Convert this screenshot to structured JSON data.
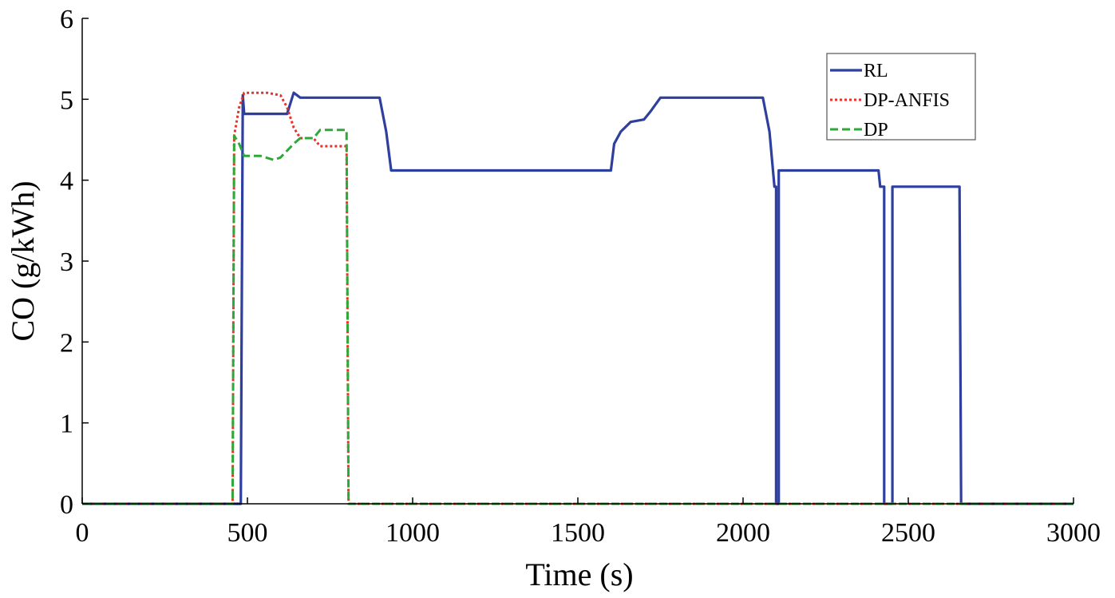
{
  "chart_data": {
    "type": "line",
    "title": "",
    "xlabel": "Time (s)",
    "ylabel": "CO (g/kWh)",
    "xlim": [
      0,
      3000
    ],
    "ylim": [
      0,
      6
    ],
    "xticks": [
      0,
      500,
      1000,
      1500,
      2000,
      2500,
      3000
    ],
    "yticks": [
      0,
      1,
      2,
      3,
      4,
      5,
      6
    ],
    "grid": false,
    "legend_position": "top-right",
    "series": [
      {
        "name": "RL",
        "color": "#2e3f9e",
        "style": "solid",
        "points": [
          [
            0,
            0
          ],
          [
            480,
            0
          ],
          [
            486,
            5.05
          ],
          [
            490,
            4.82
          ],
          [
            620,
            4.82
          ],
          [
            640,
            5.08
          ],
          [
            660,
            5.02
          ],
          [
            900,
            5.02
          ],
          [
            920,
            4.6
          ],
          [
            935,
            4.12
          ],
          [
            1600,
            4.12
          ],
          [
            1610,
            4.45
          ],
          [
            1630,
            4.6
          ],
          [
            1660,
            4.72
          ],
          [
            1700,
            4.75
          ],
          [
            1720,
            4.85
          ],
          [
            1750,
            5.02
          ],
          [
            2060,
            5.02
          ],
          [
            2080,
            4.6
          ],
          [
            2095,
            3.92
          ],
          [
            2100,
            3.92
          ],
          [
            2100,
            0
          ],
          [
            2108,
            0
          ],
          [
            2108,
            4.12
          ],
          [
            2410,
            4.12
          ],
          [
            2415,
            3.92
          ],
          [
            2427,
            3.92
          ],
          [
            2427,
            0
          ],
          [
            2452,
            0
          ],
          [
            2452,
            3.92
          ],
          [
            2655,
            3.92
          ],
          [
            2660,
            0
          ],
          [
            3000,
            0
          ]
        ]
      },
      {
        "name": "DP-ANFIS",
        "color": "#e8312a",
        "style": "dotted",
        "points": [
          [
            0,
            0
          ],
          [
            455,
            0
          ],
          [
            460,
            4.55
          ],
          [
            475,
            4.9
          ],
          [
            490,
            5.08
          ],
          [
            560,
            5.08
          ],
          [
            600,
            5.05
          ],
          [
            620,
            4.9
          ],
          [
            640,
            4.65
          ],
          [
            660,
            4.52
          ],
          [
            700,
            4.52
          ],
          [
            720,
            4.42
          ],
          [
            800,
            4.42
          ],
          [
            806,
            0
          ],
          [
            3000,
            0
          ]
        ]
      },
      {
        "name": "DP",
        "color": "#2fa83a",
        "style": "dashed",
        "points": [
          [
            0,
            0
          ],
          [
            455,
            0
          ],
          [
            460,
            4.55
          ],
          [
            475,
            4.45
          ],
          [
            490,
            4.3
          ],
          [
            540,
            4.3
          ],
          [
            580,
            4.25
          ],
          [
            600,
            4.28
          ],
          [
            640,
            4.45
          ],
          [
            660,
            4.52
          ],
          [
            700,
            4.52
          ],
          [
            720,
            4.62
          ],
          [
            800,
            4.62
          ],
          [
            806,
            0
          ],
          [
            3000,
            0
          ]
        ]
      }
    ]
  }
}
